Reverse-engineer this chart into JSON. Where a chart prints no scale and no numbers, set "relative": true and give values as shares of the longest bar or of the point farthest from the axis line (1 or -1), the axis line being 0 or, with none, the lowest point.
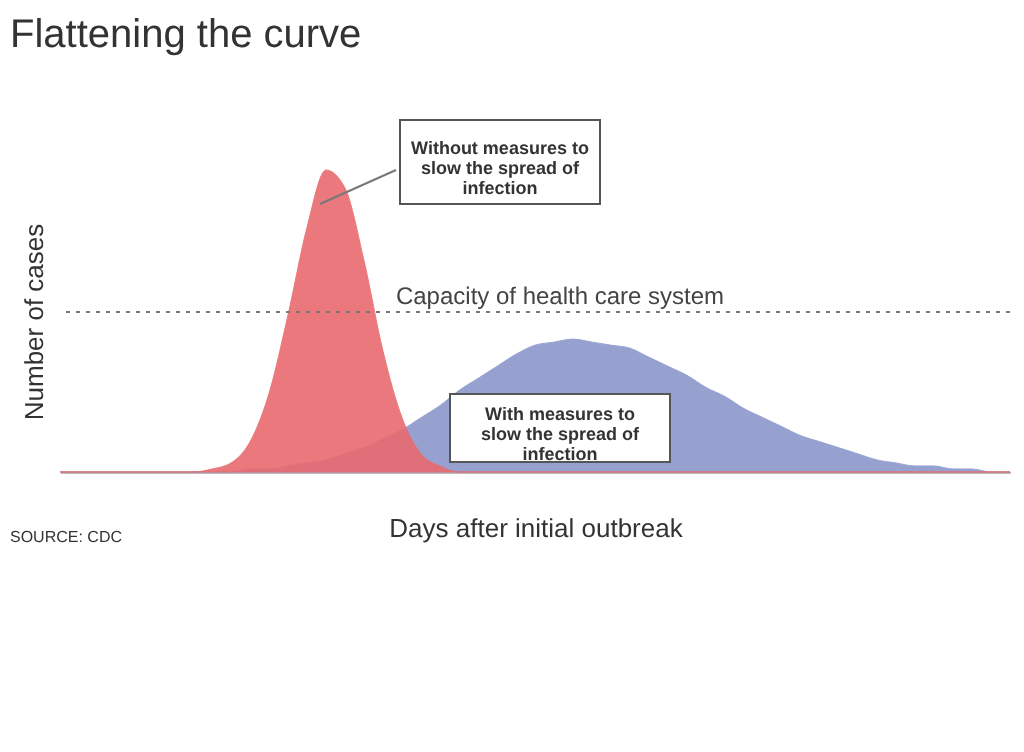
{
  "chart_data": {
    "type": "area",
    "title": "Flattening the curve",
    "xlabel": "Days after initial outbreak",
    "ylabel": "Number of cases",
    "relative": true,
    "grid": false,
    "categories": [
      null,
      null,
      null,
      null,
      null,
      null,
      null,
      null,
      null,
      null,
      null,
      null,
      null,
      null,
      null,
      null,
      null,
      null,
      null,
      null,
      null,
      null,
      null,
      null,
      null,
      null,
      null,
      null,
      null,
      null,
      null,
      null,
      null,
      null,
      null,
      null,
      null,
      null,
      null,
      null,
      null,
      null,
      null,
      null,
      null,
      null,
      null,
      null,
      null,
      null,
      null
    ],
    "series": [
      {
        "color": "#e86a6f",
        "values": [
          0,
          0,
          0,
          0,
          0,
          0,
          0,
          0,
          0.01,
          0.03,
          0.1,
          0.26,
          0.52,
          0.81,
          1,
          0.94,
          0.7,
          0.4,
          0.18,
          0.06,
          0.02,
          0,
          0,
          0,
          0,
          0,
          0,
          0,
          0,
          0,
          0,
          0,
          0,
          0,
          0,
          0,
          0,
          0,
          0,
          0,
          0,
          0,
          0,
          0,
          0,
          0,
          0,
          0,
          0,
          0,
          0
        ]
      },
      {
        "color": "#8b97cc",
        "values": [
          0,
          0,
          0,
          0,
          0,
          0,
          0,
          0,
          0,
          0,
          0.01,
          0.01,
          0.02,
          0.03,
          0.04,
          0.06,
          0.08,
          0.11,
          0.14,
          0.18,
          0.22,
          0.27,
          0.31,
          0.35,
          0.39,
          0.42,
          0.43,
          0.44,
          0.43,
          0.42,
          0.41,
          0.38,
          0.35,
          0.32,
          0.28,
          0.25,
          0.21,
          0.18,
          0.15,
          0.12,
          0.1,
          0.08,
          0.06,
          0.04,
          0.03,
          0.02,
          0.02,
          0.01,
          0.01,
          0,
          0
        ]
      }
    ],
    "ref_lines": [
      {
        "axis": "y",
        "value": 0.53,
        "label": "Capacity of health care system",
        "line_style": "dotted",
        "color": "#777777"
      }
    ],
    "annotations": [
      "Without measures to slow the spread of infection",
      "With measures to slow the spread of infection",
      "SOURCE: CDC"
    ]
  }
}
